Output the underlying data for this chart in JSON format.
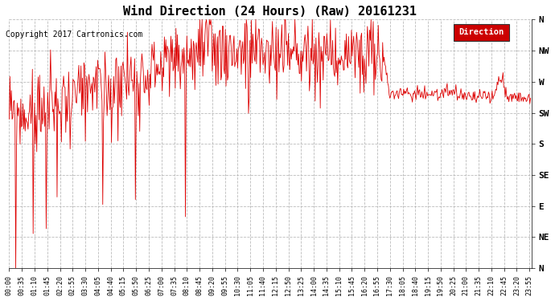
{
  "title": "Wind Direction (24 Hours) (Raw) 20161231",
  "copyright": "Copyright 2017 Cartronics.com",
  "legend_label": "Direction",
  "legend_bg": "#cc0000",
  "legend_fg": "#ffffff",
  "line_color": "#dd0000",
  "bg_color": "#ffffff",
  "grid_color": "#bbbbbb",
  "ytick_labels": [
    "N",
    "NW",
    "W",
    "SW",
    "S",
    "SE",
    "E",
    "NE",
    "N"
  ],
  "ytick_values": [
    360,
    315,
    270,
    225,
    180,
    135,
    90,
    45,
    0
  ],
  "ylim": [
    0,
    360
  ],
  "title_fontsize": 11,
  "copyright_fontsize": 7,
  "axis_fontsize": 8,
  "tick_fontsize": 6
}
